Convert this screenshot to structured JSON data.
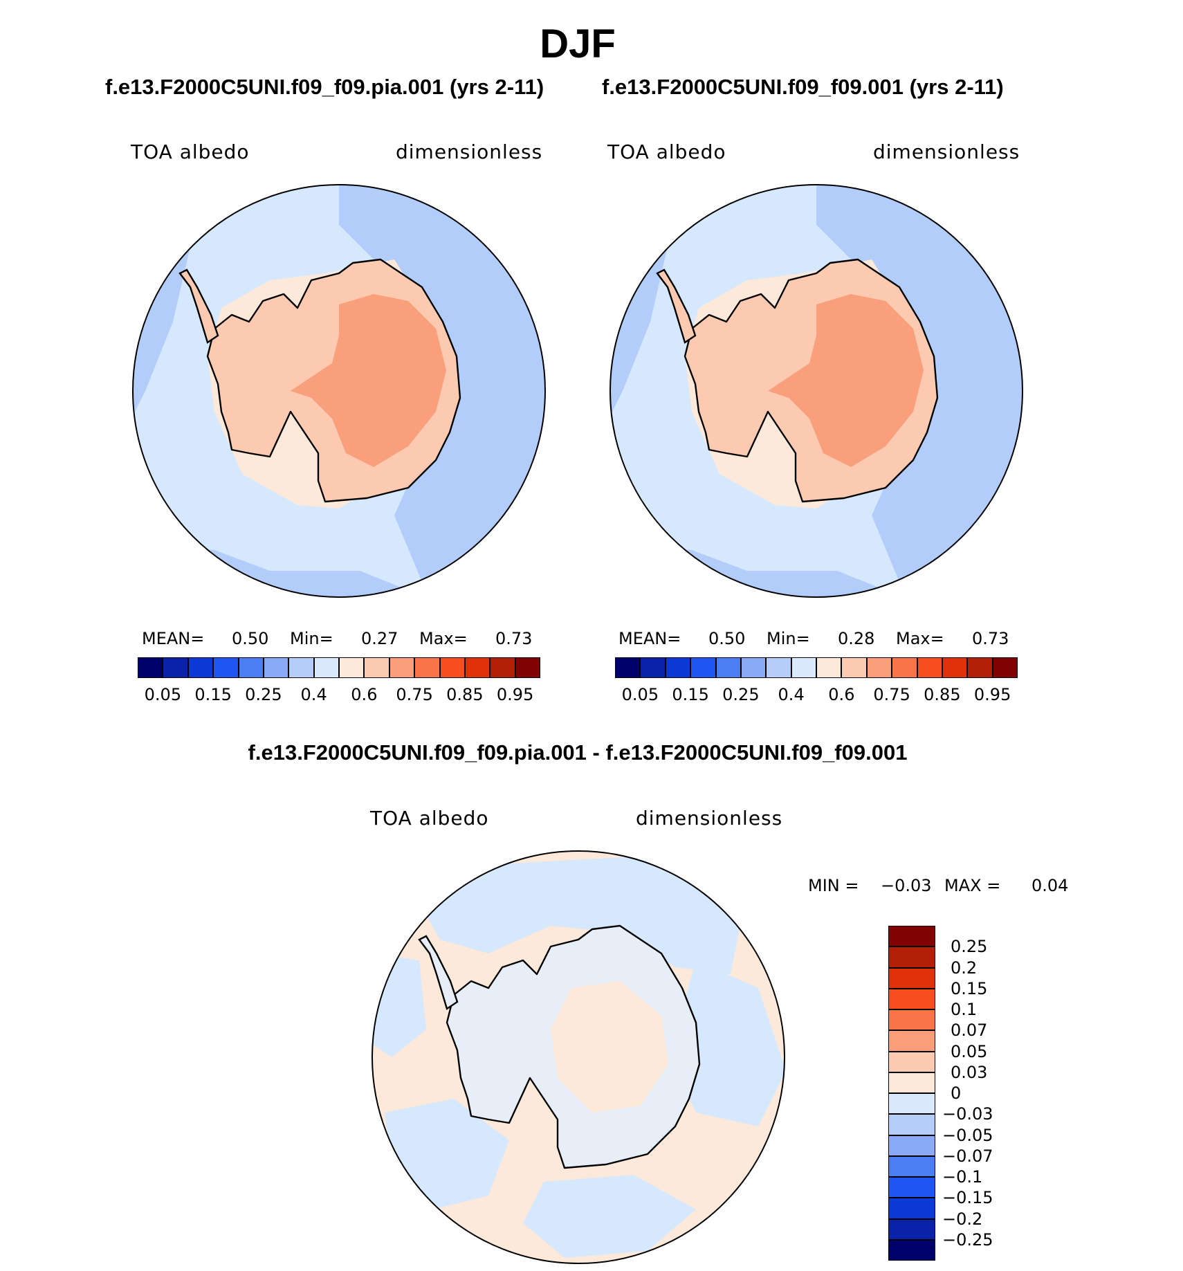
{
  "figure": {
    "title": "DJF",
    "diff_title": "f.e13.F2000C5UNI.f09_f09.pia.001 - f.e13.F2000C5UNI.f09_f09.001"
  },
  "panels": [
    {
      "case_title": "f.e13.F2000C5UNI.f09_f09.pia.001 (yrs 2-11)",
      "variable": "TOA albedo",
      "units": "dimensionless",
      "mean_label": "MEAN=",
      "mean": "0.50",
      "min_label": "Min=",
      "min": "0.27",
      "max_label": "Max=",
      "max": "0.73"
    },
    {
      "case_title": "f.e13.F2000C5UNI.f09_f09.001 (yrs 2-11)",
      "variable": "TOA albedo",
      "units": "dimensionless",
      "mean_label": "MEAN=",
      "mean": "0.50",
      "min_label": "Min=",
      "min": "0.28",
      "max_label": "Max=",
      "max": "0.73"
    }
  ],
  "diff_panel": {
    "variable": "TOA albedo",
    "units": "dimensionless",
    "min_label": "MIN =",
    "min": "−0.03",
    "max_label": "MAX =",
    "max": "0.04"
  },
  "colorbar_main": {
    "tick_labels": [
      "0.05",
      "0.15",
      "0.25",
      "0.4",
      "0.6",
      "0.75",
      "0.85",
      "0.95"
    ],
    "colors": [
      "#00006b",
      "#0a22a8",
      "#0d3ad6",
      "#1f55f0",
      "#4b7ef3",
      "#8aaaf6",
      "#b6cdfa",
      "#dbe9fd",
      "#fde9d9",
      "#fccab0",
      "#fa9e7a",
      "#f97549",
      "#f84e1f",
      "#e0320a",
      "#b21e06",
      "#820303"
    ]
  },
  "colorbar_diff": {
    "tick_labels": [
      "0.25",
      "0.2",
      "0.15",
      "0.1",
      "0.07",
      "0.05",
      "0.03",
      "0",
      "−0.03",
      "−0.05",
      "−0.07",
      "−0.1",
      "−0.15",
      "−0.2",
      "−0.25"
    ],
    "colors": [
      "#820303",
      "#b21e06",
      "#e0320a",
      "#f84e1f",
      "#f97549",
      "#fa9e7a",
      "#fccab0",
      "#fde9d9",
      "#dbe9fd",
      "#b6cdfa",
      "#8aaaf6",
      "#4b7ef3",
      "#1f55f0",
      "#0d3ad6",
      "#0a22a8",
      "#00006b"
    ]
  },
  "map_colors": {
    "ocean_light": "#d6e8fd",
    "ocean_mid": "#b3cdfb",
    "ocean_dark": "#8eabf5",
    "ice_light": "#fde9d9",
    "land": "#fbcab0",
    "interior": "#fa9f7b",
    "diff_bg": "#fde9d9",
    "diff_blue": "#d6e8fd"
  }
}
